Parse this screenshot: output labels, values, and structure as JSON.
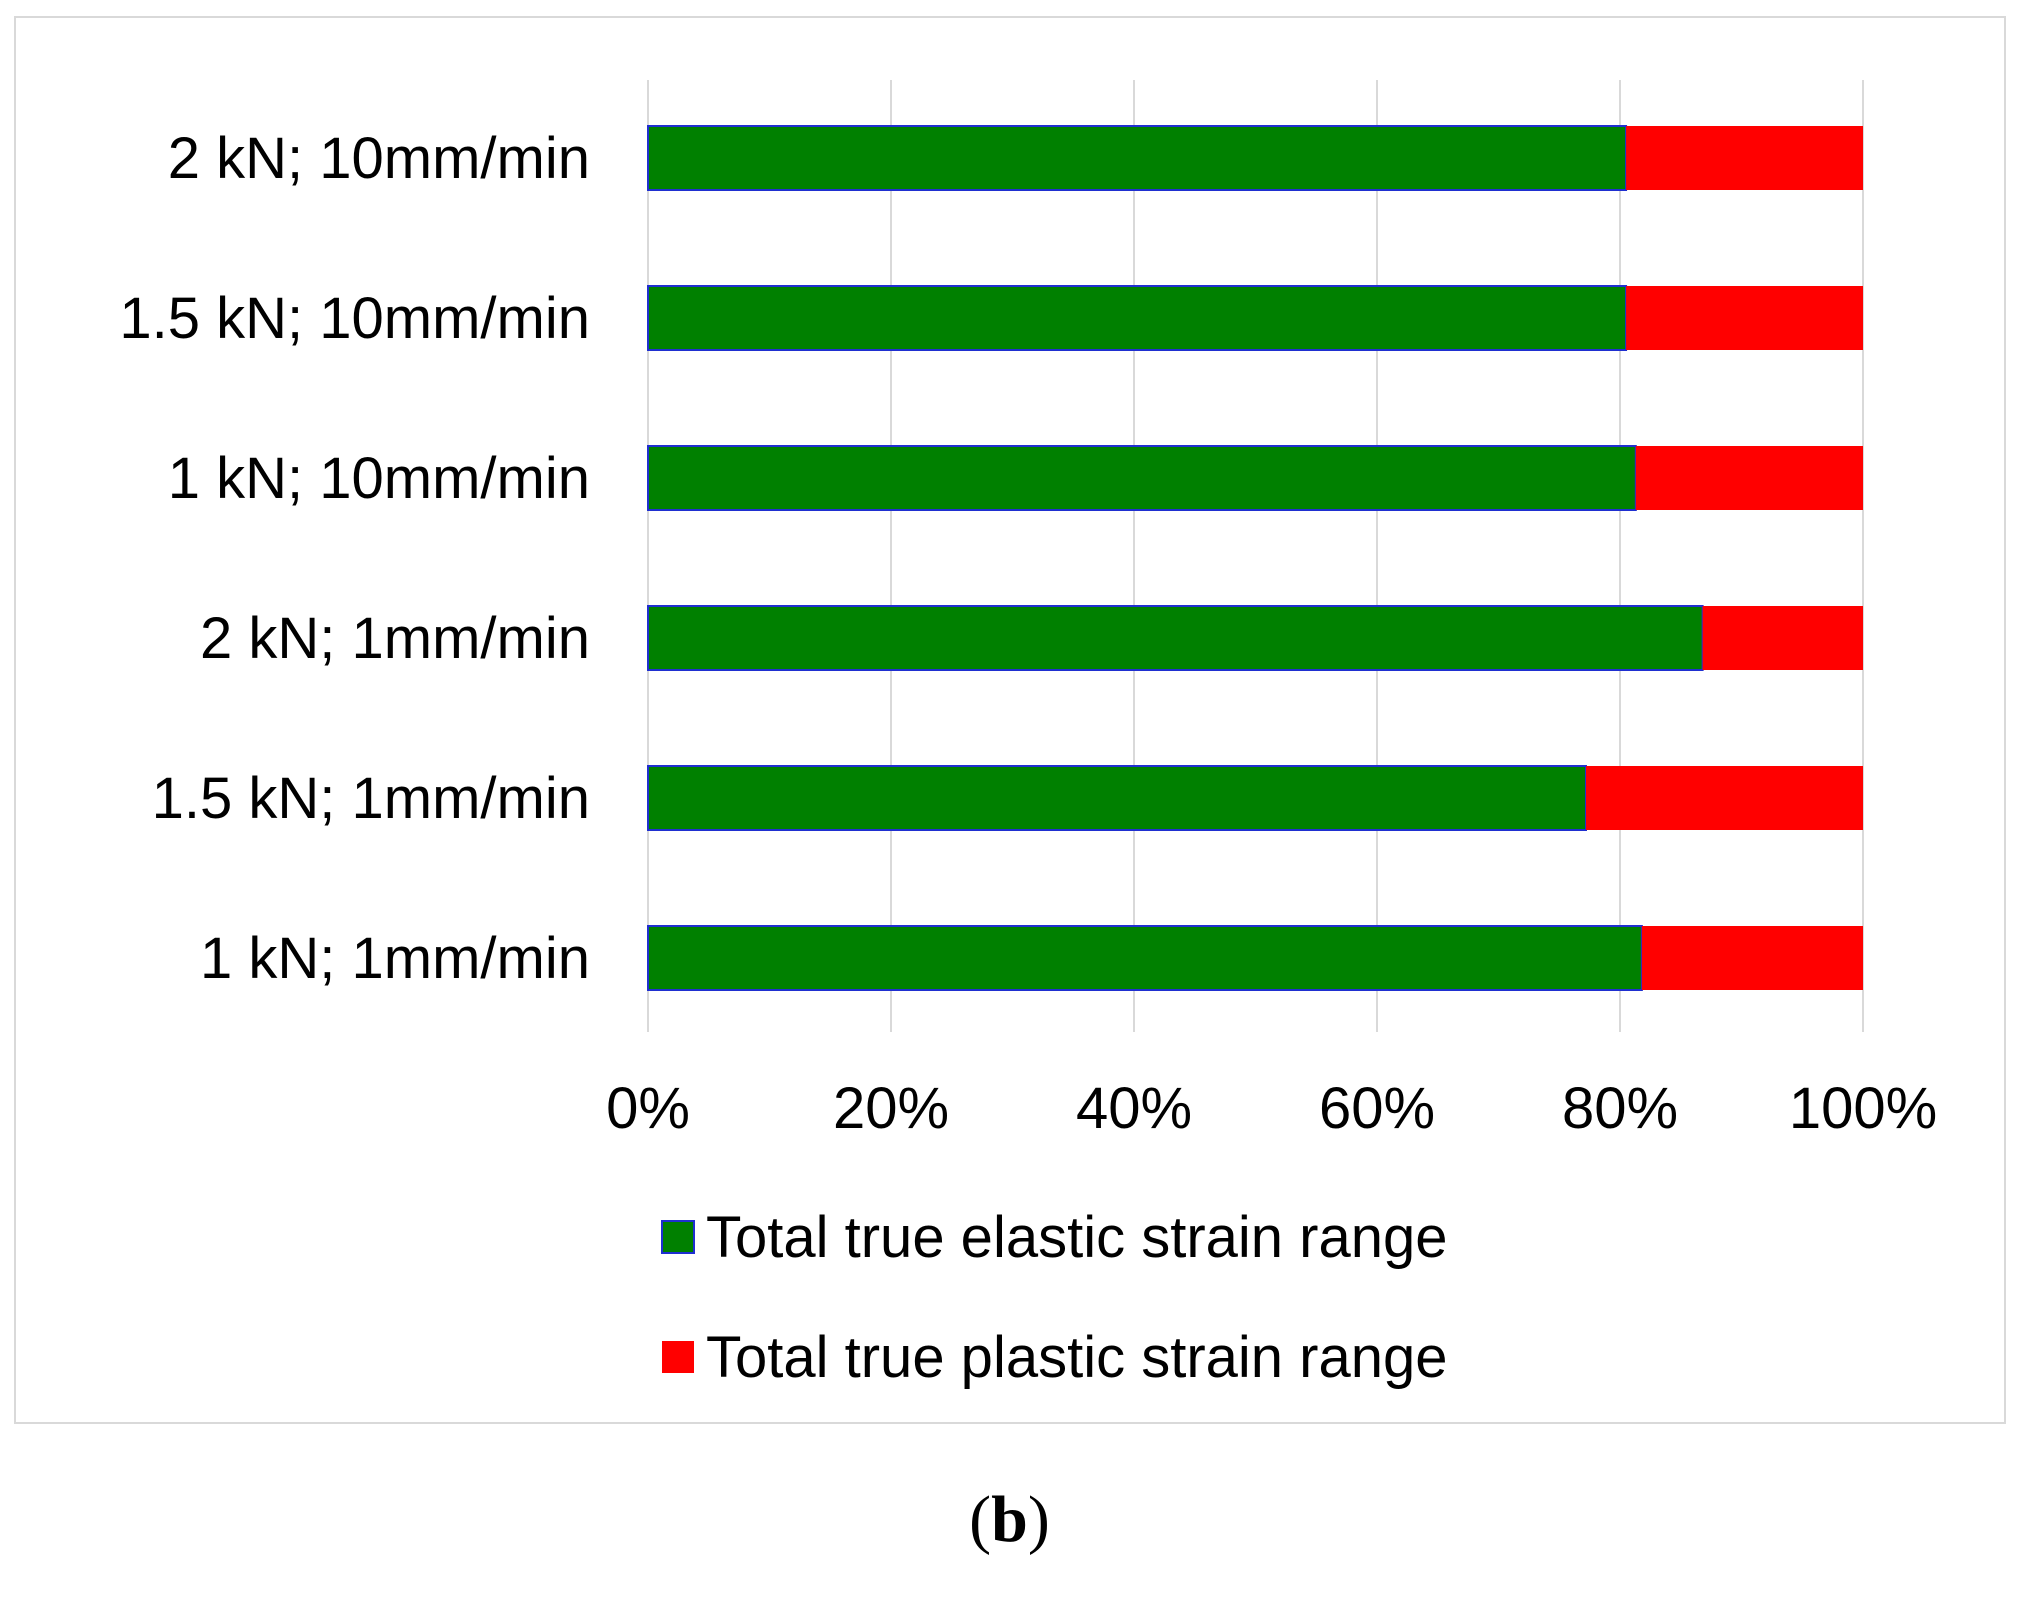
{
  "chart_data": {
    "type": "bar",
    "orientation": "horizontal",
    "stacked": "percent",
    "categories": [
      "2 kN; 10mm/min",
      "1.5 kN; 10mm/min",
      "1 kN; 10mm/min",
      "2 kN; 1mm/min",
      "1.5 kN; 1mm/min",
      "1 kN; 1mm/min"
    ],
    "series": [
      {
        "name": "Total true elastic strain range",
        "color": "#008000",
        "values": [
          80.5,
          80.5,
          81.3,
          86.8,
          77.2,
          81.8
        ]
      },
      {
        "name": "Total true plastic strain range",
        "color": "#ff0000",
        "values": [
          19.5,
          19.5,
          18.7,
          13.2,
          22.8,
          18.2
        ]
      }
    ],
    "xticks": [
      "0%",
      "20%",
      "40%",
      "60%",
      "80%",
      "100%"
    ],
    "xlim": [
      0,
      100
    ],
    "grid": true,
    "legend": "bottom",
    "title": "",
    "xlabel": "",
    "ylabel": ""
  },
  "panel_label": "b"
}
